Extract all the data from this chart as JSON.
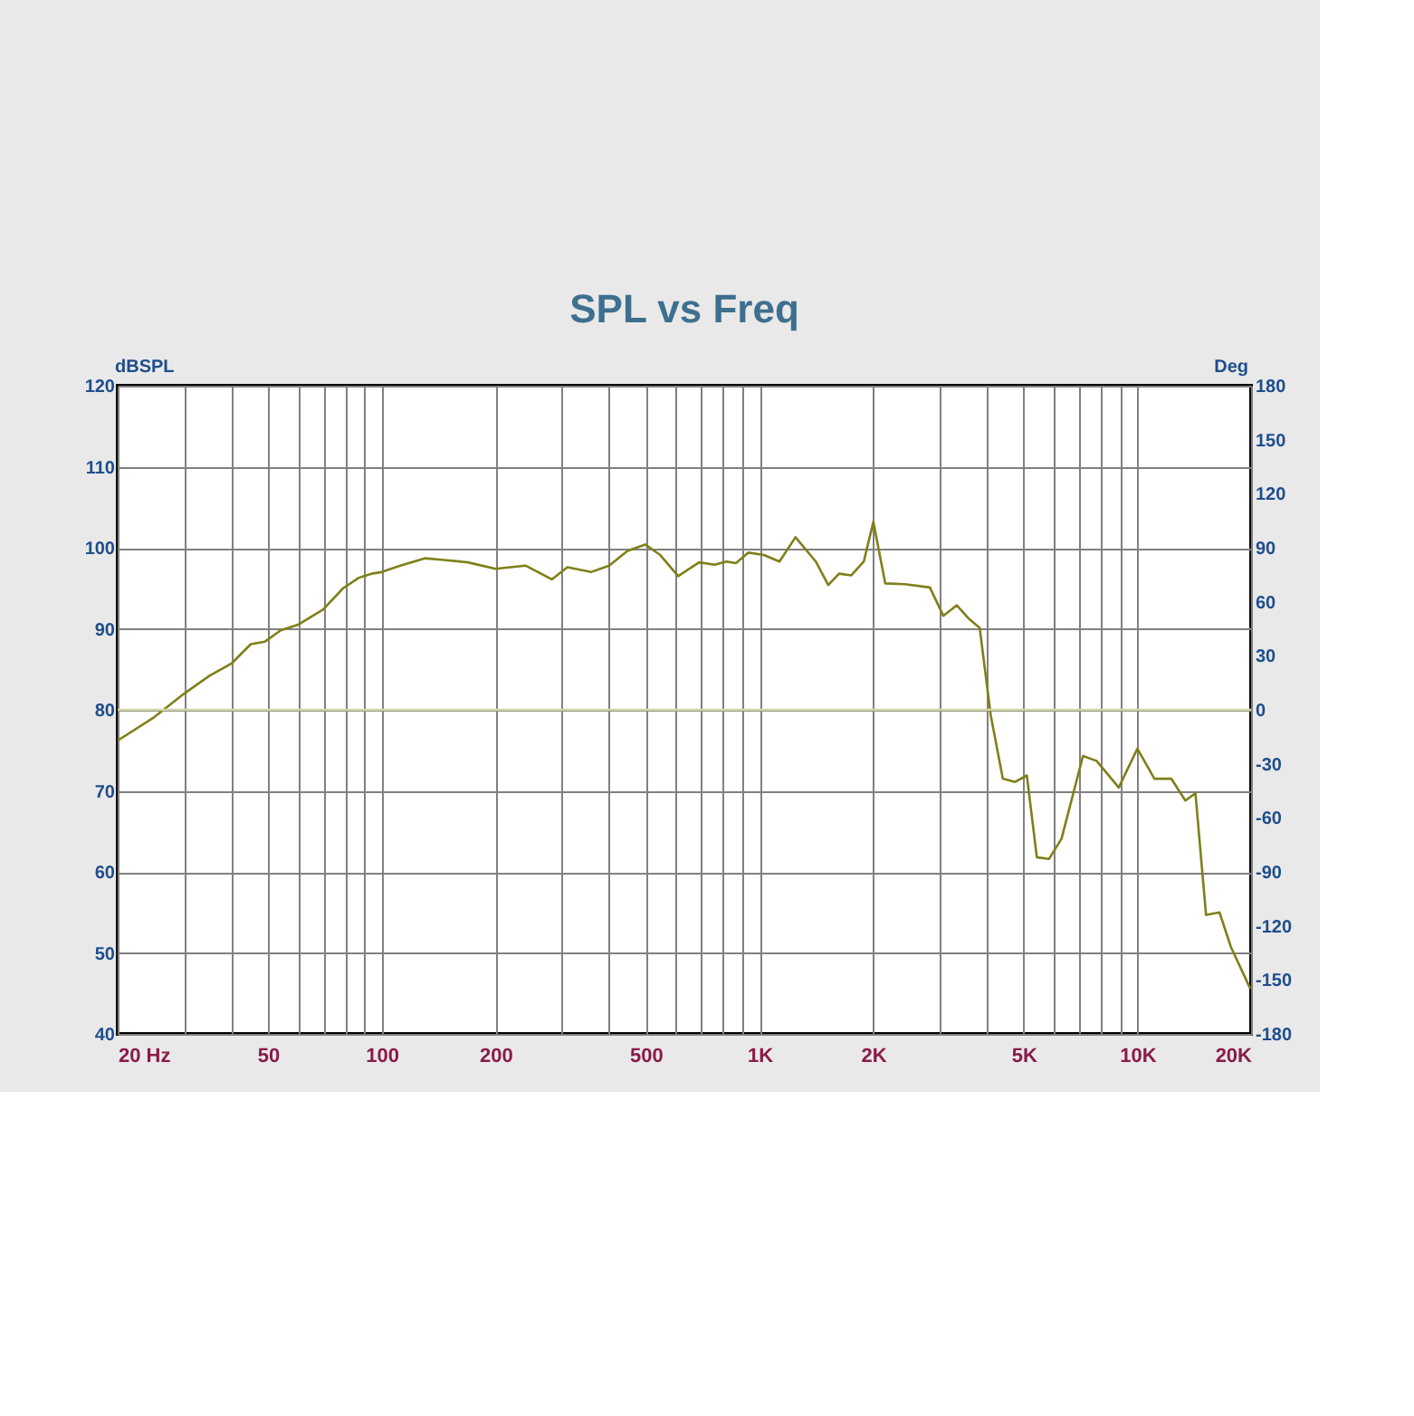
{
  "chart_data": {
    "type": "line",
    "title": "SPL vs Freq",
    "ylabel": "dBSPL",
    "y2label": "Deg",
    "log": "x",
    "grid": true,
    "xlim": [
      20,
      20000
    ],
    "xticks": [
      {
        "value": 20,
        "label": "20 Hz"
      },
      {
        "value": 30,
        "label": null
      },
      {
        "value": 40,
        "label": null
      },
      50,
      {
        "value": 60,
        "label": null
      },
      {
        "value": 70,
        "label": null
      },
      {
        "value": 80,
        "label": null
      },
      {
        "value": 90,
        "label": null
      },
      100,
      200,
      {
        "value": 300,
        "label": null
      },
      {
        "value": 400,
        "label": null
      },
      500,
      {
        "value": 600,
        "label": null
      },
      {
        "value": 700,
        "label": null
      },
      {
        "value": 800,
        "label": null
      },
      {
        "value": 900,
        "label": null
      },
      {
        "value": 1000,
        "label": "1K"
      },
      {
        "value": 2000,
        "label": "2K"
      },
      {
        "value": 3000,
        "label": null
      },
      {
        "value": 4000,
        "label": null
      },
      {
        "value": 5000,
        "label": "5K"
      },
      {
        "value": 6000,
        "label": null
      },
      {
        "value": 7000,
        "label": null
      },
      {
        "value": 8000,
        "label": null
      },
      {
        "value": 9000,
        "label": null
      },
      {
        "value": 10000,
        "label": "10K"
      },
      {
        "value": 20000,
        "label": "20K"
      }
    ],
    "ylim": [
      40,
      120
    ],
    "yticks": [
      40,
      50,
      60,
      70,
      80,
      90,
      100,
      110,
      120
    ],
    "y2lim": [
      -180,
      180
    ],
    "y2ticks": [
      -180,
      -150,
      -120,
      -90,
      -60,
      -30,
      0,
      30,
      60,
      90,
      120,
      150,
      180
    ],
    "series": [
      {
        "color": "#7f7f1a",
        "x": [
          20,
          25,
          30,
          35,
          40,
          45,
          49,
          54,
          60,
          70,
          79,
          87,
          94,
          100,
          112,
          130,
          146,
          169,
          200,
          240,
          282,
          310,
          358,
          400,
          447,
          498,
          546,
          609,
          692,
          760,
          818,
          866,
          935,
          1027,
          1129,
          1245,
          1409,
          1520,
          1624,
          1750,
          1888,
          2001,
          2152,
          2426,
          2824,
          3065,
          3328,
          3590,
          3826,
          4093,
          4405,
          4748,
          5100,
          5420,
          5840,
          6300,
          7180,
          7800,
          8930,
          10000,
          11100,
          12300,
          13400,
          14250,
          15200,
          16500,
          17700,
          19900
        ],
        "values": [
          76.2,
          79.1,
          82.0,
          84.2,
          85.7,
          88.1,
          88.4,
          89.8,
          90.5,
          92.4,
          95.0,
          96.3,
          96.8,
          97.0,
          97.8,
          98.7,
          98.5,
          98.2,
          97.4,
          97.8,
          96.1,
          97.6,
          97.0,
          97.8,
          99.6,
          100.4,
          99.1,
          96.5,
          98.2,
          97.9,
          98.3,
          98.1,
          99.4,
          99.1,
          98.3,
          101.3,
          98.3,
          95.4,
          96.8,
          96.6,
          98.3,
          103.2,
          95.6,
          95.5,
          95.1,
          91.6,
          92.9,
          91.2,
          90.1,
          79.3,
          71.5,
          71.1,
          71.9,
          61.8,
          61.6,
          64.1,
          74.3,
          73.7,
          70.4,
          75.2,
          71.5,
          71.5,
          68.8,
          69.7,
          54.7,
          55.0,
          50.7,
          45.6
        ]
      },
      {
        "color": "#d6d6a6",
        "axis": "y2",
        "x": [
          20,
          20000
        ],
        "values": [
          0,
          0
        ]
      }
    ]
  }
}
